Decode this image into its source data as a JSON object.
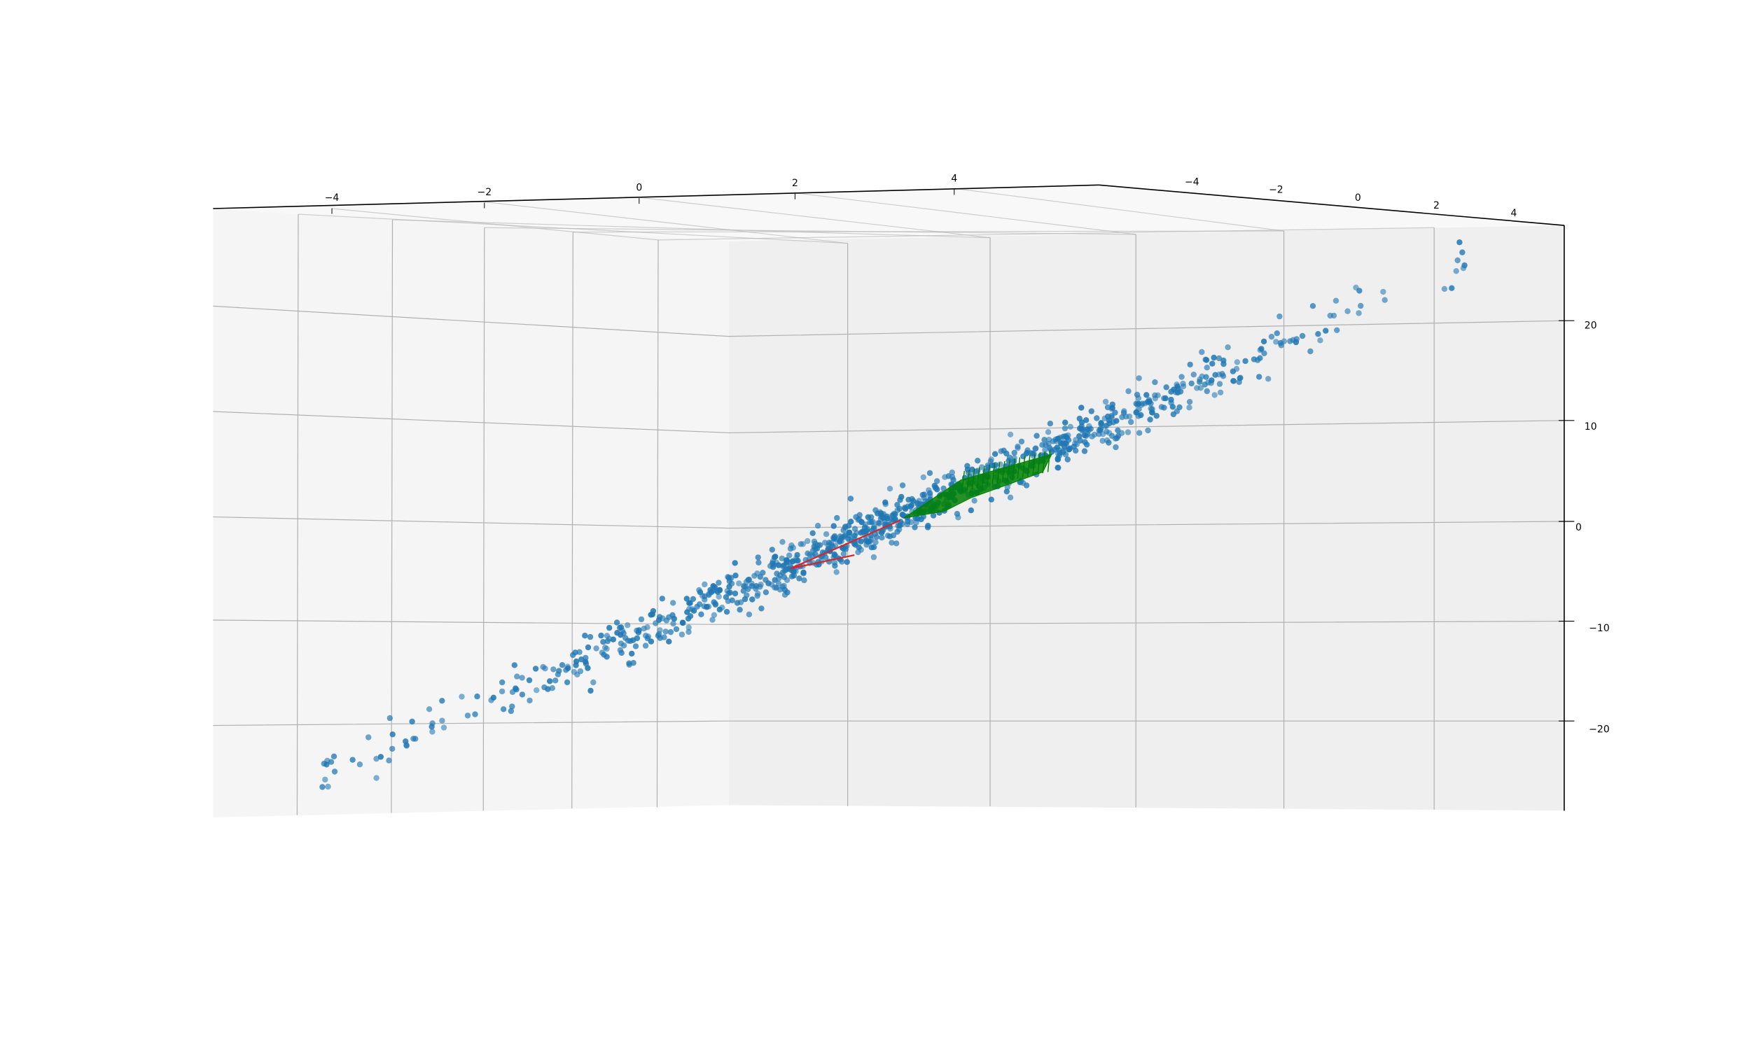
{
  "chart_data": {
    "type": "scatter",
    "projection": "3d",
    "title": "",
    "x_ticks": [
      "−4",
      "−2",
      "0",
      "2",
      "4"
    ],
    "y_ticks": [
      "−4",
      "−2",
      "0",
      "2",
      "4"
    ],
    "z_ticks": [
      "20",
      "10",
      "0",
      "−10",
      "−20"
    ],
    "xlim": [
      -5,
      5
    ],
    "ylim": [
      -5,
      5
    ],
    "zlim": [
      -28,
      28
    ],
    "grid": true,
    "scatter": {
      "color": "#1f77b4",
      "approx_count": 1000,
      "trend": "points lie along z ≈ 2.3·x + 2.3·y with small scatter",
      "x_range": [
        -4.6,
        4.6
      ],
      "z_range": [
        -26,
        26
      ]
    },
    "red_line": {
      "color": "#d62728"
    },
    "green_surface": {
      "color": "#008000"
    }
  }
}
